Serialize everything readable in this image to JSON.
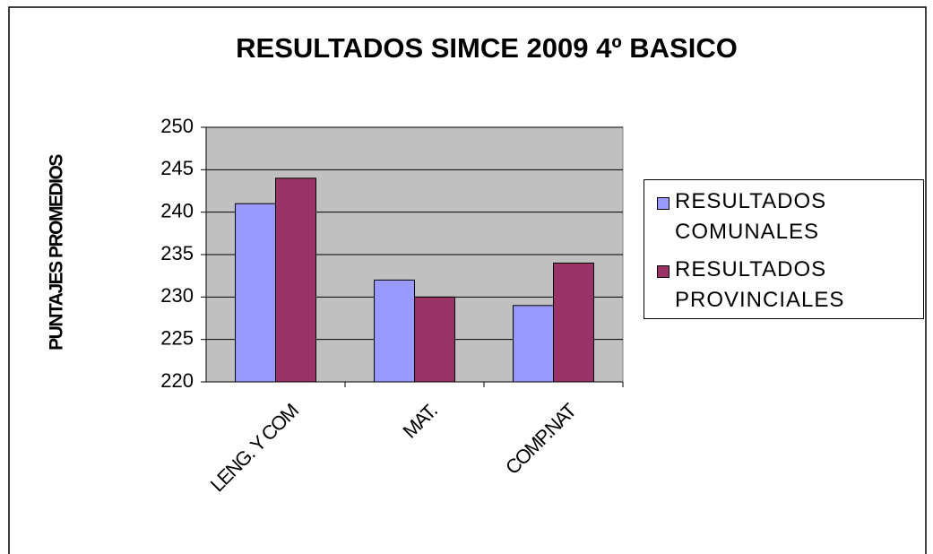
{
  "chart_data": {
    "type": "bar",
    "title": "RESULTADOS SIMCE 2009 4º BASICO",
    "y_label": "PUNTAJES PROMEDIOS",
    "categories": [
      "LENG. Y COM",
      "MAT.",
      "COMP.NAT"
    ],
    "series": [
      {
        "name": "RESULTADOS COMUNALES",
        "color": "#9999ff",
        "values": [
          241,
          232,
          229
        ]
      },
      {
        "name": "RESULTADOS PROVINCIALES",
        "color": "#993366",
        "values": [
          244,
          230,
          234
        ]
      }
    ],
    "ylim": [
      220,
      250
    ],
    "yticks": [
      220,
      225,
      230,
      235,
      240,
      245,
      250
    ],
    "grid": true,
    "legend": "right"
  }
}
